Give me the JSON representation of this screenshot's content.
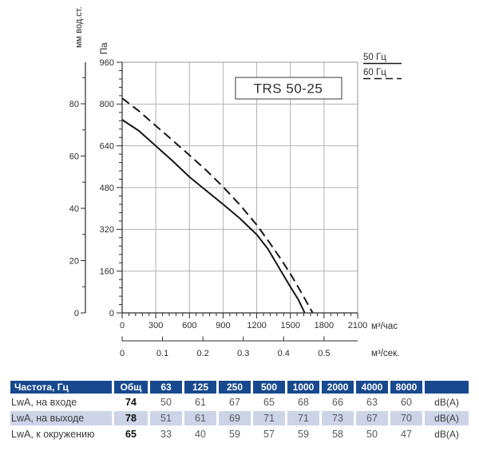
{
  "colors": {
    "table_header_bg": "#18498f",
    "table_shaded_row_bg": "#cdd4e8",
    "grid_line": "#b3b3b3",
    "plot_border": "#9a9a9a",
    "axis_line": "#2a2a2a",
    "curve": "#161616",
    "text": "#2e2e2e"
  },
  "chart_data": [
    {
      "type": "line",
      "title": "TRS 50-25",
      "grid": true,
      "legend_position": "top-right",
      "x_axis": {
        "label": "м³/час",
        "range": [
          0,
          2100
        ],
        "ticks": [
          0,
          300,
          600,
          900,
          1200,
          1500,
          1800,
          2100
        ],
        "minor_step": 60
      },
      "x_axis_secondary": {
        "label": "м³/сек.",
        "ticks": [
          0,
          0.1,
          0.2,
          0.3,
          0.4,
          0.5
        ],
        "hours_per_unit": 3600
      },
      "y_axis": {
        "label": "Па",
        "range": [
          0,
          960
        ],
        "ticks": [
          0,
          160,
          320,
          480,
          640,
          800,
          960
        ],
        "minor_step": 32
      },
      "y_axis_secondary": {
        "label": "мм вод.ст.",
        "ticks": [
          0,
          20,
          40,
          60,
          80
        ],
        "minor_step": 10,
        "top_value": 95
      },
      "series": [
        {
          "name": "50 Гц",
          "style": "solid",
          "points": [
            [
              0,
              740
            ],
            [
              150,
              697
            ],
            [
              300,
              640
            ],
            [
              450,
              582
            ],
            [
              600,
              521
            ],
            [
              750,
              468
            ],
            [
              900,
              416
            ],
            [
              1050,
              362
            ],
            [
              1200,
              300
            ],
            [
              1300,
              245
            ],
            [
              1400,
              172
            ],
            [
              1500,
              100
            ],
            [
              1570,
              52
            ],
            [
              1628,
              0
            ]
          ]
        },
        {
          "name": "60 Гц",
          "style": "dashed",
          "points": [
            [
              0,
              822
            ],
            [
              150,
              773
            ],
            [
              300,
              717
            ],
            [
              450,
              661
            ],
            [
              600,
              604
            ],
            [
              750,
              546
            ],
            [
              900,
              483
            ],
            [
              1050,
              414
            ],
            [
              1200,
              337
            ],
            [
              1300,
              278
            ],
            [
              1400,
              216
            ],
            [
              1500,
              150
            ],
            [
              1600,
              76
            ],
            [
              1699,
              0
            ]
          ]
        }
      ]
    },
    {
      "type": "table",
      "header": [
        "Частота, Гц",
        "Общ",
        "63",
        "125",
        "250",
        "500",
        "1000",
        "2000",
        "4000",
        "8000",
        ""
      ],
      "rows": [
        {
          "label": "LwA, на входе",
          "total": 74,
          "values": [
            50,
            61,
            67,
            65,
            68,
            66,
            63,
            60
          ],
          "unit": "dB(A)",
          "shaded": false
        },
        {
          "label": "LwA, на выходе",
          "total": 78,
          "values": [
            51,
            61,
            69,
            71,
            71,
            73,
            67,
            70
          ],
          "unit": "dB(A)",
          "shaded": true
        },
        {
          "label": "LwA, к окружению",
          "total": 65,
          "values": [
            33,
            40,
            59,
            57,
            59,
            58,
            50,
            47
          ],
          "unit": "dB(A)",
          "shaded": false
        }
      ]
    }
  ]
}
